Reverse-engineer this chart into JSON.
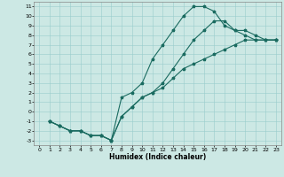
{
  "xlabel": "Humidex (Indice chaleur)",
  "bg_color": "#cce8e4",
  "grid_color": "#99cccc",
  "line_color": "#1a6b60",
  "xlim": [
    -0.5,
    23.5
  ],
  "ylim": [
    -3.5,
    11.5
  ],
  "xticks": [
    0,
    1,
    2,
    3,
    4,
    5,
    6,
    7,
    8,
    9,
    10,
    11,
    12,
    13,
    14,
    15,
    16,
    17,
    18,
    19,
    20,
    21,
    22,
    23
  ],
  "yticks": [
    -3,
    -2,
    -1,
    0,
    1,
    2,
    3,
    4,
    5,
    6,
    7,
    8,
    9,
    10,
    11
  ],
  "line1_x": [
    1,
    2,
    3,
    4,
    5,
    6,
    7,
    8,
    9,
    10,
    11,
    12,
    13,
    14,
    15,
    16,
    17,
    18,
    19,
    20,
    21,
    22,
    23
  ],
  "line1_y": [
    -1,
    -1.5,
    -2,
    -2,
    -2.5,
    -2.5,
    -3,
    1.5,
    2.0,
    3.0,
    5.5,
    7.0,
    8.5,
    10.0,
    11.0,
    11.0,
    10.5,
    9.0,
    8.5,
    8.5,
    8.0,
    7.5,
    7.5
  ],
  "line2_x": [
    1,
    2,
    3,
    4,
    5,
    6,
    7,
    8,
    9,
    10,
    11,
    12,
    13,
    14,
    15,
    16,
    17,
    18,
    19,
    20,
    21,
    22,
    23
  ],
  "line2_y": [
    -1,
    -1.5,
    -2,
    -2,
    -2.5,
    -2.5,
    -3,
    -0.5,
    0.5,
    1.5,
    2.0,
    3.0,
    4.5,
    6.0,
    7.5,
    8.5,
    9.5,
    9.5,
    8.5,
    8.0,
    7.5,
    7.5,
    7.5
  ],
  "line3_x": [
    1,
    2,
    3,
    4,
    5,
    6,
    7,
    8,
    9,
    10,
    11,
    12,
    13,
    14,
    15,
    16,
    17,
    18,
    19,
    20,
    21,
    22,
    23
  ],
  "line3_y": [
    -1,
    -1.5,
    -2,
    -2,
    -2.5,
    -2.5,
    -3,
    -0.5,
    0.5,
    1.5,
    2.0,
    2.5,
    3.5,
    4.5,
    5.0,
    5.5,
    6.0,
    6.5,
    7.0,
    7.5,
    7.5,
    7.5,
    7.5
  ]
}
